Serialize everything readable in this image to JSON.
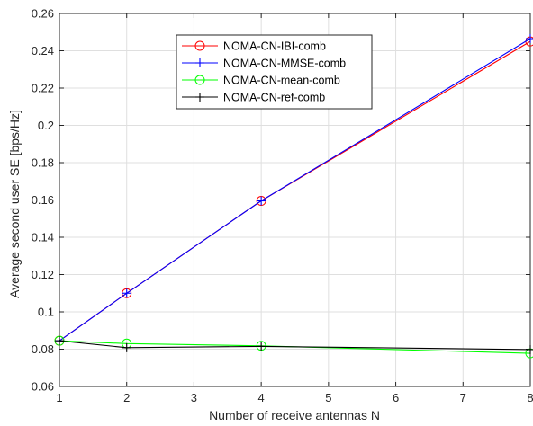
{
  "chart_data": {
    "type": "line",
    "xlabel": "Number of receive antennas N",
    "ylabel": "Average second user SE [bps/Hz]",
    "xlim": [
      1,
      8
    ],
    "ylim": [
      0.06,
      0.26
    ],
    "xticks": [
      1,
      2,
      3,
      4,
      5,
      6,
      7,
      8
    ],
    "xtick_labels": [
      "1",
      "2",
      "3",
      "4",
      "5",
      "6",
      "7",
      "8"
    ],
    "yticks": [
      0.06,
      0.08,
      0.1,
      0.12,
      0.14,
      0.16,
      0.18,
      0.2,
      0.22,
      0.24,
      0.26
    ],
    "ytick_labels": [
      "0.06",
      "0.08",
      "0.1",
      "0.12",
      "0.14",
      "0.16",
      "0.18",
      "0.2",
      "0.22",
      "0.24",
      "0.26"
    ],
    "grid": true,
    "legend_position": "top-center",
    "series": [
      {
        "name": "NOMA-CN-IBI-comb",
        "color": "#ff0000",
        "marker": "circle",
        "x": [
          1,
          2,
          4,
          8
        ],
        "values": [
          0.0845,
          0.11,
          0.1595,
          0.245
        ]
      },
      {
        "name": "NOMA-CN-MMSE-comb",
        "color": "#0000ff",
        "marker": "plus",
        "x": [
          1,
          2,
          4,
          8
        ],
        "values": [
          0.0845,
          0.11,
          0.1595,
          0.2465
        ]
      },
      {
        "name": "NOMA-CN-mean-comb",
        "color": "#00ff00",
        "marker": "circle",
        "x": [
          1,
          2,
          4,
          8
        ],
        "values": [
          0.0845,
          0.083,
          0.0818,
          0.0778
        ]
      },
      {
        "name": "NOMA-CN-ref-comb",
        "color": "#000000",
        "marker": "plus",
        "x": [
          1,
          2,
          4,
          8
        ],
        "values": [
          0.0845,
          0.0808,
          0.0815,
          0.0798
        ]
      }
    ]
  }
}
